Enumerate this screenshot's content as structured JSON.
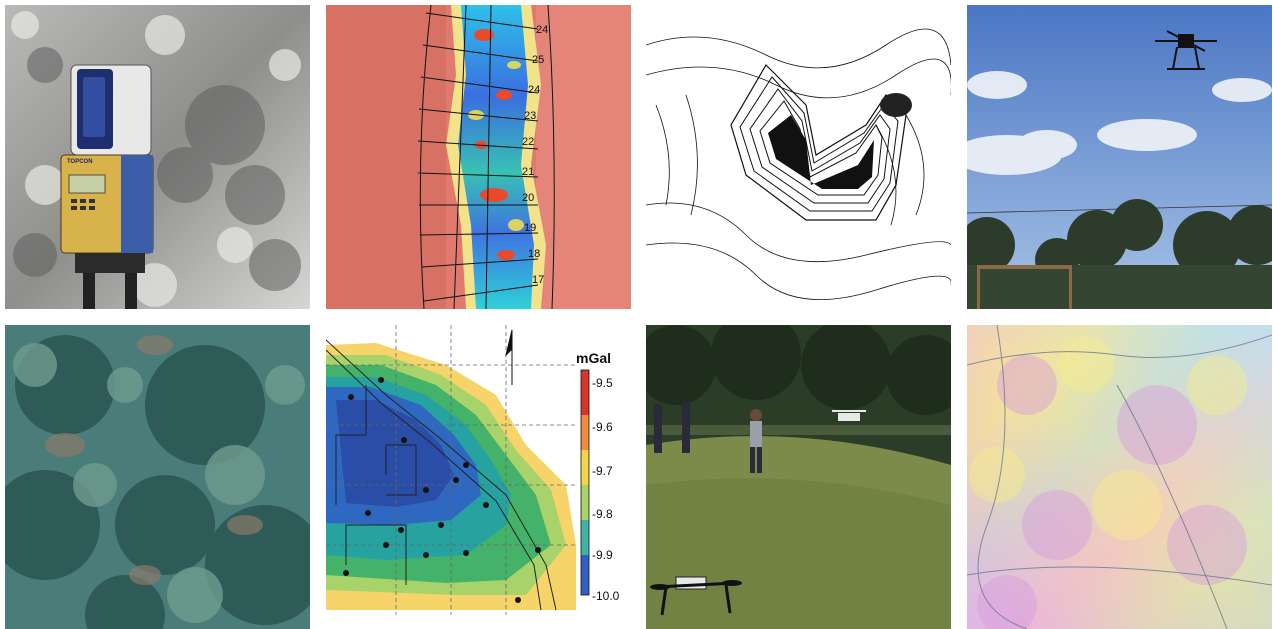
{
  "tiles": {
    "scanner": {
      "brand_label": "TOPCON"
    },
    "profile_map": {
      "section_numbers": [
        "24",
        "25",
        "24",
        "23",
        "22",
        "21",
        "20",
        "19",
        "18",
        "17"
      ]
    },
    "gravity_map": {
      "unit": "mGal",
      "scale_ticks": [
        "-9.5",
        "-9.6",
        "-9.7",
        "-9.8",
        "-9.9",
        "-10.0"
      ]
    }
  }
}
